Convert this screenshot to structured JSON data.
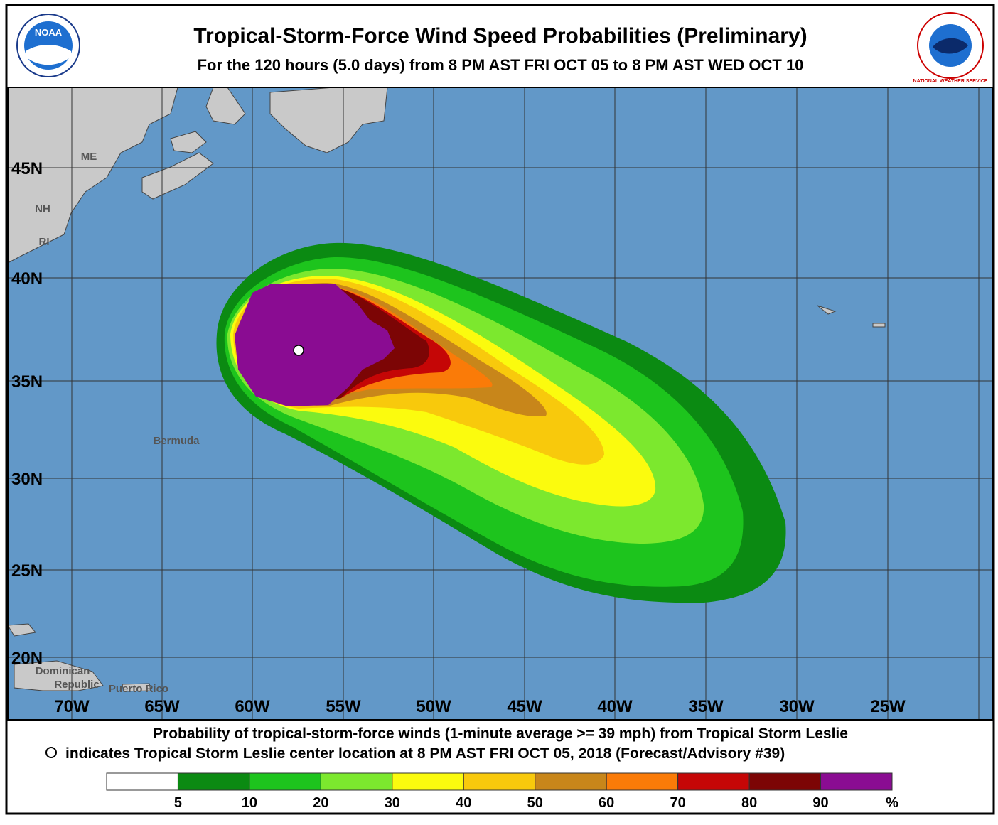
{
  "header": {
    "title": "Tropical-Storm-Force Wind Speed Probabilities (Preliminary)",
    "subtitle": "For the 120 hours (5.0 days) from 8 PM AST FRI OCT 05 to 8 PM AST WED OCT 10"
  },
  "logos": {
    "noaa": "NOAA",
    "nws": "NATIONAL WEATHER SERVICE"
  },
  "map": {
    "lat_labels": [
      "45N",
      "40N",
      "35N",
      "30N",
      "25N",
      "20N"
    ],
    "lon_labels": [
      "70W",
      "65W",
      "60W",
      "55W",
      "50W",
      "45W",
      "40W",
      "35W",
      "30W",
      "25W"
    ],
    "places": [
      "ME",
      "NH",
      "RI",
      "Bermuda",
      "Dominican",
      "Republic",
      "Puerto Rico"
    ]
  },
  "footer": {
    "line1": "Probability of tropical-storm-force winds (1-minute average >= 39 mph) from Tropical Storm Leslie",
    "line2": "indicates Tropical Storm Leslie center location at 8 PM AST FRI OCT 05, 2018 (Forecast/Advisory #39)"
  },
  "legend": {
    "colors": [
      "#ffffff",
      "#0b8a12",
      "#1dc41d",
      "#7ce82e",
      "#fbfb0e",
      "#f8c90c",
      "#c8861a",
      "#fa7b08",
      "#c50606",
      "#7c0505",
      "#8a0c92"
    ],
    "ticks": [
      "5",
      "10",
      "20",
      "30",
      "40",
      "50",
      "60",
      "70",
      "80",
      "90",
      "%"
    ]
  }
}
